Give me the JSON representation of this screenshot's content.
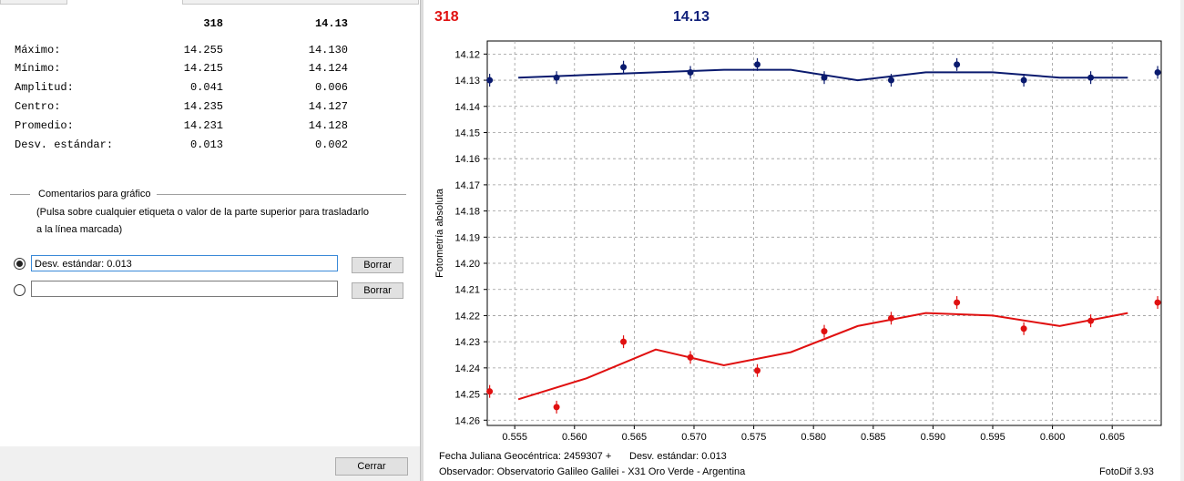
{
  "stats": {
    "header": {
      "col1": "318",
      "col2": "14.13"
    },
    "rows": [
      {
        "label": "Máximo:",
        "v1": "14.255",
        "v2": "14.130"
      },
      {
        "label": "Mínimo:",
        "v1": "14.215",
        "v2": "14.124"
      },
      {
        "label": "Amplitud:",
        "v1": "0.041",
        "v2": "0.006"
      },
      {
        "label": "Centro:",
        "v1": "14.235",
        "v2": "14.127"
      },
      {
        "label": "Promedio:",
        "v1": "14.231",
        "v2": "14.128"
      },
      {
        "label": "Desv. estándar:",
        "v1": "0.013",
        "v2": "0.002"
      }
    ]
  },
  "comments": {
    "title": "Comentarios para gráfico",
    "hint_line1": "(Pulsa sobre cualquier etiqueta o valor de la parte superior para trasladarlo",
    "hint_line2": "a la línea marcada)",
    "row1_value": "Desv. estándar: 0.013",
    "row2_value": "",
    "delete_label": "Borrar"
  },
  "close_label": "Cerrar",
  "chart_header": {
    "left": "318",
    "right": "14.13"
  },
  "footer": {
    "line1a": "Fecha Juliana Geocéntrica: 2459307 +",
    "line1b": "Desv. estándar: 0.013",
    "line2": "Observador: Observatorio Galileo Galilei - X31 Oro Verde - Argentina",
    "app": "FotoDif 3.93"
  },
  "colors": {
    "series1": "#e01010",
    "series2": "#0a1a6e"
  },
  "chart_data": {
    "type": "scatter",
    "ylabel": "Fotometría absoluta",
    "xlim": [
      0.5527,
      0.6091
    ],
    "ylim": [
      14.262,
      14.115
    ],
    "y_inverted": true,
    "grid": true,
    "xticks": [
      "0.555",
      "0.560",
      "0.565",
      "0.570",
      "0.575",
      "0.580",
      "0.585",
      "0.590",
      "0.595",
      "0.600",
      "0.605"
    ],
    "yticks": [
      "14.12",
      "14.13",
      "14.14",
      "14.15",
      "14.16",
      "14.17",
      "14.18",
      "14.19",
      "14.20",
      "14.21",
      "14.22",
      "14.23",
      "14.24",
      "14.25",
      "14.26"
    ],
    "series": [
      {
        "points": [
          [
            0.5529,
            14.249
          ],
          [
            0.5585,
            14.255
          ],
          [
            0.5641,
            14.23
          ],
          [
            0.5697,
            14.236
          ],
          [
            0.5753,
            14.241
          ],
          [
            0.5809,
            14.226
          ],
          [
            0.5865,
            14.221
          ],
          [
            0.592,
            14.215
          ],
          [
            0.5976,
            14.225
          ],
          [
            0.6032,
            14.222
          ],
          [
            0.6088,
            14.215
          ]
        ],
        "fit": [
          [
            0.5553,
            14.252
          ],
          [
            0.561,
            14.244
          ],
          [
            0.5668,
            14.233
          ],
          [
            0.5725,
            14.239
          ],
          [
            0.5781,
            14.234
          ],
          [
            0.5837,
            14.224
          ],
          [
            0.5894,
            14.219
          ],
          [
            0.595,
            14.22
          ],
          [
            0.6006,
            14.224
          ],
          [
            0.6063,
            14.219
          ]
        ]
      },
      {
        "points": [
          [
            0.5529,
            14.13
          ],
          [
            0.5585,
            14.129
          ],
          [
            0.5641,
            14.125
          ],
          [
            0.5697,
            14.127
          ],
          [
            0.5753,
            14.124
          ],
          [
            0.5809,
            14.129
          ],
          [
            0.5865,
            14.13
          ],
          [
            0.592,
            14.124
          ],
          [
            0.5976,
            14.13
          ],
          [
            0.6032,
            14.129
          ],
          [
            0.6088,
            14.127
          ]
        ],
        "fit": [
          [
            0.5553,
            14.129
          ],
          [
            0.561,
            14.128
          ],
          [
            0.5668,
            14.127
          ],
          [
            0.5725,
            14.126
          ],
          [
            0.5781,
            14.126
          ],
          [
            0.5837,
            14.13
          ],
          [
            0.5894,
            14.127
          ],
          [
            0.595,
            14.127
          ],
          [
            0.6006,
            14.129
          ],
          [
            0.6063,
            14.129
          ]
        ]
      }
    ]
  }
}
